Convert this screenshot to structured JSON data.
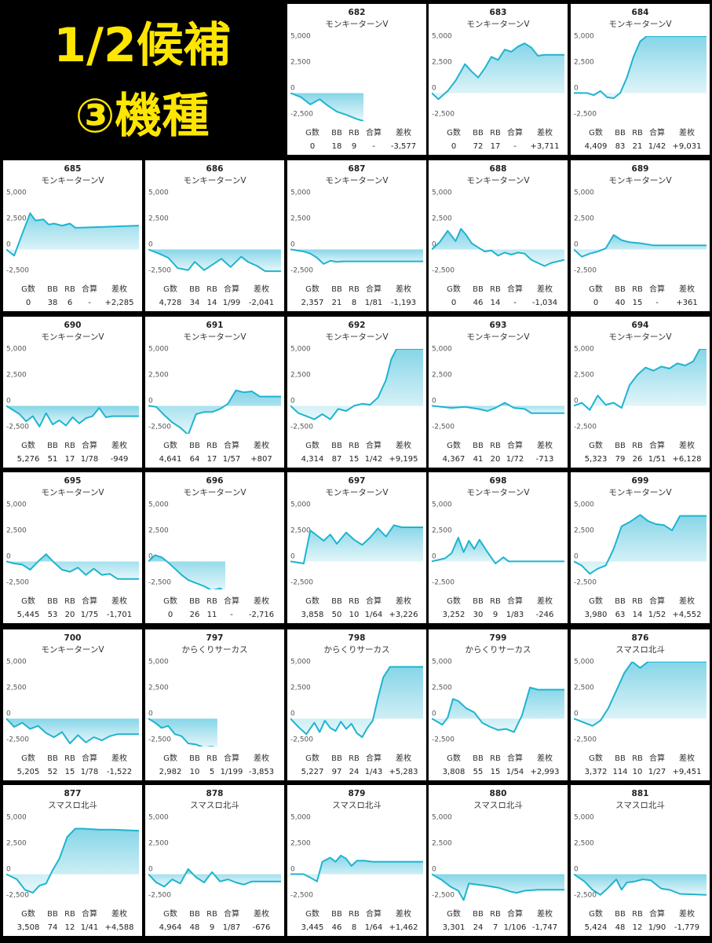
{
  "title": {
    "line1": "1/2候補",
    "line2": "③機種"
  },
  "stats_headers": [
    "G数",
    "BB",
    "RB",
    "合算",
    "差枚"
  ],
  "y_ticks": [
    "5,000",
    "2,500",
    "0",
    "-2,500"
  ],
  "colors": {
    "line": "#1fb4cf",
    "fill_top": "#7fd3e6",
    "fill_bottom": "#e4f6fa",
    "border": "#000000"
  },
  "chart_data": [
    {
      "type": "area",
      "machine_no": "682",
      "model": "モンキーターンV",
      "stats": [
        "0",
        "18",
        "9",
        "-",
        "-3,577"
      ],
      "ylim": [
        -2700,
        5500
      ],
      "x": [
        0,
        0.08,
        0.15,
        0.22,
        0.28,
        0.35,
        0.42,
        0.5,
        0.55
      ],
      "y": [
        0,
        -400,
        -1100,
        -600,
        -1200,
        -1800,
        -2100,
        -2500,
        -2700
      ]
    },
    {
      "type": "area",
      "machine_no": "683",
      "model": "モンキーターンV",
      "stats": [
        "0",
        "72",
        "17",
        "-",
        "+3,711"
      ],
      "ylim": [
        -2700,
        5500
      ],
      "x": [
        0,
        0.05,
        0.12,
        0.18,
        0.25,
        0.3,
        0.35,
        0.4,
        0.45,
        0.5,
        0.55,
        0.6,
        0.65,
        0.7,
        0.75,
        0.8,
        0.85,
        1
      ],
      "y": [
        0,
        -600,
        200,
        1200,
        2800,
        2100,
        1500,
        2400,
        3500,
        3200,
        4200,
        4000,
        4500,
        4800,
        4400,
        3600,
        3700,
        3700
      ]
    },
    {
      "type": "area",
      "machine_no": "684",
      "model": "モンキーターンV",
      "stats": [
        "4,409",
        "83",
        "21",
        "1/42",
        "+9,031"
      ],
      "ylim": [
        -2700,
        5500
      ],
      "x": [
        0,
        0.1,
        0.15,
        0.2,
        0.25,
        0.3,
        0.35,
        0.4,
        0.45,
        0.5,
        0.55,
        0.6,
        1
      ],
      "y": [
        0,
        0,
        -200,
        200,
        -400,
        -500,
        0,
        1500,
        3500,
        5000,
        5500,
        5500,
        5500
      ]
    },
    {
      "type": "area",
      "machine_no": "685",
      "model": "モンキーターンV",
      "stats": [
        "0",
        "38",
        "6",
        "-",
        "+2,285"
      ],
      "ylim": [
        -2700,
        5500
      ],
      "x": [
        0,
        0.06,
        0.12,
        0.18,
        0.22,
        0.28,
        0.32,
        0.36,
        0.42,
        0.48,
        0.52,
        0.55,
        1
      ],
      "y": [
        0,
        -600,
        1500,
        3500,
        2800,
        2900,
        2400,
        2500,
        2300,
        2500,
        2100,
        2100,
        2300
      ]
    },
    {
      "type": "area",
      "machine_no": "686",
      "model": "モンキーターンV",
      "stats": [
        "4,728",
        "34",
        "14",
        "1/99",
        "-2,041"
      ],
      "ylim": [
        -2700,
        5500
      ],
      "x": [
        0,
        0.08,
        0.15,
        0.22,
        0.3,
        0.35,
        0.42,
        0.48,
        0.55,
        0.62,
        0.7,
        0.75,
        0.82,
        0.88,
        1
      ],
      "y": [
        0,
        -400,
        -800,
        -1800,
        -2000,
        -1200,
        -2000,
        -1500,
        -900,
        -1700,
        -700,
        -1200,
        -1600,
        -2100,
        -2100
      ]
    },
    {
      "type": "area",
      "machine_no": "687",
      "model": "モンキーターンV",
      "stats": [
        "2,357",
        "21",
        "8",
        "1/81",
        "-1,193"
      ],
      "ylim": [
        -2700,
        5500
      ],
      "x": [
        0,
        0.1,
        0.15,
        0.2,
        0.25,
        0.3,
        0.35,
        0.4,
        1
      ],
      "y": [
        0,
        -200,
        -400,
        -800,
        -1400,
        -1100,
        -1200,
        -1150,
        -1150
      ]
    },
    {
      "type": "area",
      "machine_no": "688",
      "model": "モンキーターンV",
      "stats": [
        "0",
        "46",
        "14",
        "-",
        "-1,034"
      ],
      "ylim": [
        -2700,
        5500
      ],
      "x": [
        0,
        0.06,
        0.12,
        0.18,
        0.22,
        0.26,
        0.3,
        0.35,
        0.4,
        0.45,
        0.5,
        0.55,
        0.6,
        0.65,
        0.7,
        0.75,
        0.8,
        0.85,
        0.9,
        1
      ],
      "y": [
        0,
        700,
        1800,
        800,
        2000,
        1400,
        600,
        200,
        -200,
        -100,
        -600,
        -300,
        -500,
        -300,
        -400,
        -1000,
        -1300,
        -1600,
        -1300,
        -1000
      ]
    },
    {
      "type": "area",
      "machine_no": "689",
      "model": "モンキーターンV",
      "stats": [
        "0",
        "40",
        "15",
        "-",
        "+361"
      ],
      "ylim": [
        -2700,
        5500
      ],
      "x": [
        0,
        0.06,
        0.12,
        0.18,
        0.24,
        0.3,
        0.36,
        0.42,
        0.5,
        0.6,
        0.7,
        1
      ],
      "y": [
        0,
        -700,
        -400,
        -200,
        100,
        1400,
        900,
        700,
        600,
        400,
        400,
        400
      ]
    },
    {
      "type": "area",
      "machine_no": "690",
      "model": "モンキーターンV",
      "stats": [
        "5,276",
        "51",
        "17",
        "1/78",
        "-949"
      ],
      "ylim": [
        -2700,
        5500
      ],
      "x": [
        0,
        0.1,
        0.15,
        0.2,
        0.25,
        0.3,
        0.35,
        0.4,
        0.45,
        0.5,
        0.55,
        0.6,
        0.65,
        0.7,
        0.75,
        0.8,
        0.85,
        1
      ],
      "y": [
        0,
        -800,
        -1500,
        -1000,
        -2000,
        -700,
        -1800,
        -1400,
        -1900,
        -1100,
        -1700,
        -1200,
        -1000,
        -200,
        -1100,
        -1000,
        -1000,
        -1000
      ]
    },
    {
      "type": "area",
      "machine_no": "691",
      "model": "モンキーターンV",
      "stats": [
        "4,641",
        "64",
        "17",
        "1/57",
        "+807"
      ],
      "ylim": [
        -2700,
        5500
      ],
      "x": [
        0,
        0.06,
        0.12,
        0.18,
        0.24,
        0.3,
        0.36,
        0.42,
        0.48,
        0.54,
        0.6,
        0.66,
        0.72,
        0.78,
        0.84,
        0.9,
        1
      ],
      "y": [
        0,
        -100,
        -900,
        -1600,
        -2100,
        -2800,
        -800,
        -600,
        -600,
        -300,
        200,
        1500,
        1300,
        1400,
        900,
        900,
        900
      ]
    },
    {
      "type": "area",
      "machine_no": "692",
      "model": "モンキーターンV",
      "stats": [
        "4,314",
        "87",
        "15",
        "1/42",
        "+9,195"
      ],
      "ylim": [
        -2700,
        5500
      ],
      "x": [
        0,
        0.06,
        0.12,
        0.18,
        0.24,
        0.3,
        0.36,
        0.42,
        0.48,
        0.54,
        0.6,
        0.66,
        0.72,
        0.76,
        0.8,
        1
      ],
      "y": [
        0,
        -700,
        -1000,
        -1300,
        -800,
        -1300,
        -300,
        -500,
        0,
        200,
        100,
        800,
        2500,
        4500,
        5500,
        5500
      ]
    },
    {
      "type": "area",
      "machine_no": "693",
      "model": "モンキーターンV",
      "stats": [
        "4,367",
        "41",
        "20",
        "1/72",
        "-713"
      ],
      "ylim": [
        -2700,
        5500
      ],
      "x": [
        0,
        0.15,
        0.25,
        0.35,
        0.42,
        0.48,
        0.55,
        0.62,
        0.7,
        0.75,
        0.8,
        1
      ],
      "y": [
        0,
        -200,
        -100,
        -300,
        -500,
        -200,
        300,
        -200,
        -300,
        -700,
        -700,
        -700
      ]
    },
    {
      "type": "area",
      "machine_no": "694",
      "model": "モンキーターンV",
      "stats": [
        "5,323",
        "79",
        "26",
        "1/51",
        "+6,128"
      ],
      "ylim": [
        -2700,
        5500
      ],
      "x": [
        0,
        0.06,
        0.12,
        0.18,
        0.24,
        0.3,
        0.36,
        0.42,
        0.48,
        0.54,
        0.6,
        0.66,
        0.72,
        0.78,
        0.84,
        0.9,
        0.95,
        1
      ],
      "y": [
        0,
        300,
        -400,
        1000,
        100,
        300,
        -200,
        2000,
        3000,
        3700,
        3400,
        3800,
        3600,
        4100,
        3900,
        4300,
        5500,
        5500
      ]
    },
    {
      "type": "area",
      "machine_no": "695",
      "model": "モンキーターンV",
      "stats": [
        "5,445",
        "53",
        "20",
        "1/75",
        "-1,701"
      ],
      "ylim": [
        -2700,
        5500
      ],
      "x": [
        0,
        0.06,
        0.12,
        0.18,
        0.24,
        0.3,
        0.36,
        0.42,
        0.48,
        0.54,
        0.6,
        0.66,
        0.72,
        0.78,
        0.84,
        0.9,
        1
      ],
      "y": [
        0,
        -200,
        -300,
        -800,
        0,
        700,
        -100,
        -800,
        -1000,
        -600,
        -1300,
        -700,
        -1300,
        -1200,
        -1700,
        -1700,
        -1700
      ]
    },
    {
      "type": "area",
      "machine_no": "696",
      "model": "モンキーターンV",
      "stats": [
        "0",
        "26",
        "11",
        "-",
        "-2,716"
      ],
      "ylim": [
        -2700,
        5500
      ],
      "x": [
        0,
        0.05,
        0.1,
        0.15,
        0.2,
        0.25,
        0.3,
        0.36,
        0.42,
        0.48,
        0.54,
        0.58
      ],
      "y": [
        0,
        600,
        400,
        -100,
        -700,
        -1300,
        -1800,
        -2100,
        -2400,
        -2800,
        -2600,
        -2900
      ]
    },
    {
      "type": "area",
      "machine_no": "697",
      "model": "モンキーターンV",
      "stats": [
        "3,858",
        "50",
        "10",
        "1/64",
        "+3,226"
      ],
      "ylim": [
        -2700,
        5500
      ],
      "x": [
        0,
        0.1,
        0.15,
        0.2,
        0.25,
        0.3,
        0.35,
        0.42,
        0.48,
        0.54,
        0.6,
        0.66,
        0.72,
        0.78,
        0.84,
        1
      ],
      "y": [
        0,
        -200,
        3000,
        2500,
        2000,
        2600,
        1700,
        2800,
        2100,
        1600,
        2300,
        3200,
        2400,
        3500,
        3300,
        3300
      ]
    },
    {
      "type": "area",
      "machine_no": "698",
      "model": "モンキーターンV",
      "stats": [
        "3,252",
        "30",
        "9",
        "1/83",
        "-246"
      ],
      "ylim": [
        -2700,
        5500
      ],
      "x": [
        0,
        0.1,
        0.15,
        0.2,
        0.24,
        0.28,
        0.32,
        0.36,
        0.42,
        0.48,
        0.54,
        0.58,
        1
      ],
      "y": [
        0,
        300,
        800,
        2300,
        900,
        2000,
        1200,
        2100,
        900,
        -200,
        400,
        0,
        0
      ]
    },
    {
      "type": "area",
      "machine_no": "699",
      "model": "モンキーターンV",
      "stats": [
        "3,980",
        "63",
        "14",
        "1/52",
        "+4,552"
      ],
      "ylim": [
        -2700,
        5500
      ],
      "x": [
        0,
        0.06,
        0.12,
        0.18,
        0.24,
        0.3,
        0.36,
        0.42,
        0.5,
        0.56,
        0.62,
        0.68,
        0.74,
        0.8,
        1
      ],
      "y": [
        0,
        -400,
        -1200,
        -700,
        -400,
        1200,
        3400,
        3800,
        4500,
        3900,
        3600,
        3500,
        3000,
        4400,
        4400
      ]
    },
    {
      "type": "area",
      "machine_no": "700",
      "model": "モンキーターンV",
      "stats": [
        "5,205",
        "52",
        "15",
        "1/78",
        "-1,522"
      ],
      "ylim": [
        -2700,
        5500
      ],
      "x": [
        0,
        0.06,
        0.12,
        0.18,
        0.24,
        0.3,
        0.36,
        0.42,
        0.48,
        0.54,
        0.6,
        0.66,
        0.72,
        0.78,
        0.84,
        0.9,
        1
      ],
      "y": [
        0,
        -800,
        -400,
        -1000,
        -700,
        -1400,
        -1800,
        -1300,
        -2400,
        -1600,
        -2300,
        -1800,
        -2100,
        -1700,
        -1500,
        -1500,
        -1500
      ]
    },
    {
      "type": "area",
      "machine_no": "797",
      "model": "からくりサーカス",
      "stats": [
        "2,982",
        "10",
        "5",
        "1/199",
        "-3,853"
      ],
      "ylim": [
        -2700,
        5500
      ],
      "x": [
        0,
        0.05,
        0.1,
        0.15,
        0.2,
        0.25,
        0.3,
        0.36,
        0.42,
        0.48,
        0.52
      ],
      "y": [
        0,
        -400,
        -900,
        -700,
        -1500,
        -1700,
        -2400,
        -2500,
        -2800,
        -2700,
        -2900
      ]
    },
    {
      "type": "area",
      "machine_no": "798",
      "model": "からくりサーカス",
      "stats": [
        "5,227",
        "97",
        "24",
        "1/43",
        "+5,283"
      ],
      "ylim": [
        -2700,
        5500
      ],
      "x": [
        0,
        0.06,
        0.12,
        0.18,
        0.22,
        0.26,
        0.3,
        0.34,
        0.38,
        0.42,
        0.46,
        0.5,
        0.54,
        0.58,
        0.62,
        0.66,
        0.7,
        0.75,
        0.8,
        1
      ],
      "y": [
        0,
        -800,
        -1500,
        -400,
        -1300,
        -200,
        -900,
        -1200,
        -300,
        -1000,
        -500,
        -1400,
        -1800,
        -900,
        -200,
        2000,
        4000,
        5000,
        5000,
        5000
      ]
    },
    {
      "type": "area",
      "machine_no": "799",
      "model": "からくりサーカス",
      "stats": [
        "3,808",
        "55",
        "15",
        "1/54",
        "+2,993"
      ],
      "ylim": [
        -2700,
        5500
      ],
      "x": [
        0,
        0.08,
        0.12,
        0.16,
        0.2,
        0.26,
        0.32,
        0.38,
        0.44,
        0.5,
        0.56,
        0.62,
        0.68,
        0.74,
        0.8,
        1
      ],
      "y": [
        0,
        -600,
        100,
        1900,
        1700,
        1000,
        600,
        -400,
        -800,
        -1100,
        -1000,
        -1300,
        300,
        3000,
        2800,
        2800
      ]
    },
    {
      "type": "area",
      "machine_no": "876",
      "model": "スマスロ北斗",
      "stats": [
        "3,372",
        "114",
        "10",
        "1/27",
        "+9,451"
      ],
      "ylim": [
        -2700,
        5500
      ],
      "x": [
        0,
        0.08,
        0.14,
        0.2,
        0.26,
        0.32,
        0.38,
        0.44,
        0.5,
        0.56,
        0.62,
        1
      ],
      "y": [
        0,
        -400,
        -700,
        -200,
        1000,
        2700,
        4400,
        5500,
        4900,
        5500,
        5500,
        5500
      ]
    },
    {
      "type": "area",
      "machine_no": "877",
      "model": "スマスロ北斗",
      "stats": [
        "3,508",
        "74",
        "12",
        "1/41",
        "+4,588"
      ],
      "ylim": [
        -2700,
        5500
      ],
      "x": [
        0,
        0.08,
        0.14,
        0.2,
        0.25,
        0.3,
        0.35,
        0.4,
        0.46,
        0.52,
        0.58,
        0.7,
        0.8,
        1
      ],
      "y": [
        0,
        -500,
        -1500,
        -1800,
        -1100,
        -900,
        400,
        1500,
        3600,
        4400,
        4400,
        4300,
        4300,
        4200
      ]
    },
    {
      "type": "area",
      "machine_no": "878",
      "model": "スマスロ北斗",
      "stats": [
        "4,964",
        "48",
        "9",
        "1/87",
        "-676"
      ],
      "ylim": [
        -2700,
        5500
      ],
      "x": [
        0,
        0.06,
        0.12,
        0.18,
        0.24,
        0.3,
        0.36,
        0.42,
        0.48,
        0.54,
        0.6,
        0.66,
        0.72,
        0.78,
        0.84,
        1
      ],
      "y": [
        0,
        -800,
        -1200,
        -500,
        -900,
        500,
        -300,
        -800,
        200,
        -700,
        -500,
        -800,
        -1000,
        -700,
        -700,
        -700
      ]
    },
    {
      "type": "area",
      "machine_no": "879",
      "model": "スマスロ北斗",
      "stats": [
        "3,445",
        "46",
        "8",
        "1/64",
        "+1,462"
      ],
      "ylim": [
        -2700,
        5500
      ],
      "x": [
        0,
        0.1,
        0.16,
        0.2,
        0.24,
        0.3,
        0.34,
        0.38,
        0.42,
        0.46,
        0.5,
        0.56,
        0.62,
        0.7,
        1
      ],
      "y": [
        0,
        0,
        -400,
        -700,
        1200,
        1600,
        1200,
        1800,
        1500,
        800,
        1300,
        1300,
        1200,
        1200,
        1200
      ]
    },
    {
      "type": "area",
      "machine_no": "880",
      "model": "スマスロ北斗",
      "stats": [
        "3,301",
        "24",
        "7",
        "1/106",
        "-1,747"
      ],
      "ylim": [
        -2700,
        5500
      ],
      "x": [
        0,
        0.08,
        0.14,
        0.2,
        0.24,
        0.28,
        0.34,
        0.4,
        0.5,
        0.6,
        0.64,
        0.7,
        0.8,
        1
      ],
      "y": [
        0,
        -600,
        -1200,
        -1600,
        -2500,
        -900,
        -1000,
        -1100,
        -1300,
        -1700,
        -1800,
        -1600,
        -1500,
        -1500
      ]
    },
    {
      "type": "area",
      "machine_no": "881",
      "model": "スマスロ北斗",
      "stats": [
        "5,424",
        "48",
        "12",
        "1/90",
        "-1,779"
      ],
      "ylim": [
        -2700,
        5500
      ],
      "x": [
        0,
        0.08,
        0.14,
        0.2,
        0.26,
        0.32,
        0.36,
        0.4,
        0.46,
        0.52,
        0.58,
        0.66,
        0.72,
        0.8,
        1
      ],
      "y": [
        0,
        -700,
        -1500,
        -2000,
        -1300,
        -500,
        -1500,
        -800,
        -700,
        -500,
        -600,
        -1400,
        -1500,
        -1900,
        -2000
      ]
    }
  ]
}
